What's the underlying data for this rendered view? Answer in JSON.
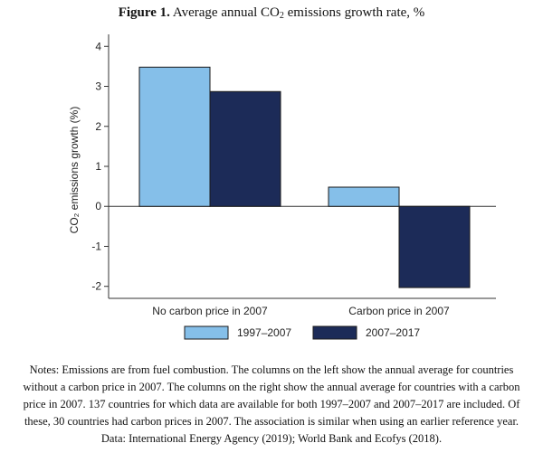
{
  "figure": {
    "label": "Figure 1.",
    "title_main": "Average annual CO",
    "title_sub": "2",
    "title_rest": " emissions growth rate, %"
  },
  "chart_data": {
    "type": "bar",
    "categories": [
      "No carbon price in 2007",
      "Carbon price in 2007"
    ],
    "series": [
      {
        "name": "1997–2007",
        "values": [
          3.48,
          0.48
        ],
        "color": "#85bfe9"
      },
      {
        "name": "2007–2017",
        "values": [
          2.87,
          -2.03
        ],
        "color": "#1c2b58"
      }
    ],
    "ylabel": "CO₂ emissions growth (%)",
    "xlabel": "",
    "ylim": [
      -2.3,
      4.3
    ],
    "yticks": [
      4,
      3,
      2,
      1,
      0,
      -1,
      -2
    ],
    "grid": false,
    "legend_position": "bottom"
  },
  "notes": "Notes: Emissions are from fuel combustion. The columns on the left show the annual average for countries without a carbon price in 2007. The columns on the right show the annual average for countries with a carbon price in 2007. 137 countries for which data are available for both 1997–2007 and 2007–2017 are included. Of these, 30 countries had carbon prices in 2007. The association is similar when using an earlier reference year. Data: International Energy Agency (2019); World Bank and Ecofys (2018)."
}
